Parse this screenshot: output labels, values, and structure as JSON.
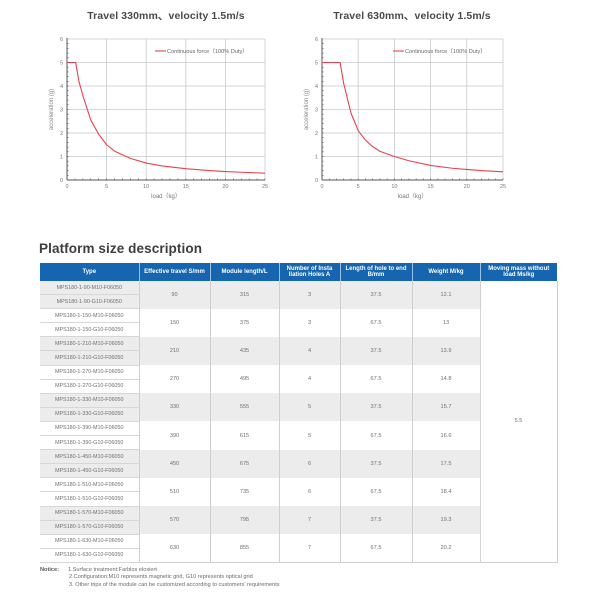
{
  "charts": [
    {
      "title": "Travel 330mm、velocity 1.5m/s",
      "legend": "Continuous force（100% Duty）",
      "xlabel": "load（kg）",
      "ylabel": "acceleration (g)"
    },
    {
      "title": "Travel 630mm、velocity 1.5m/s",
      "legend": "Continuous force（100% Duty）",
      "xlabel": "load（kg）",
      "ylabel": "acceleration (g)"
    }
  ],
  "chart_data": [
    {
      "type": "line",
      "title": "Travel 330mm、velocity 1.5m/s",
      "xlabel": "load（kg）",
      "ylabel": "acceleration (g)",
      "xlim": [
        0,
        25
      ],
      "ylim": [
        0,
        6
      ],
      "xticks": [
        0,
        5,
        10,
        15,
        20,
        25
      ],
      "yticks": [
        0,
        1,
        2,
        3,
        4,
        5,
        6
      ],
      "grid": true,
      "legend_position": "upper right",
      "color": "#e8424f",
      "series": [
        {
          "name": "Continuous force（100% Duty）",
          "x": [
            0,
            1.1,
            1.5,
            2,
            3,
            4,
            5,
            6,
            8,
            10,
            12,
            15,
            18,
            20,
            22,
            25
          ],
          "y": [
            5.0,
            5.0,
            4.2,
            3.6,
            2.55,
            1.95,
            1.5,
            1.23,
            0.92,
            0.72,
            0.6,
            0.48,
            0.4,
            0.36,
            0.33,
            0.29
          ]
        }
      ]
    },
    {
      "type": "line",
      "title": "Travel 630mm、velocity 1.5m/s",
      "xlabel": "load（kg）",
      "ylabel": "acceleration (g)",
      "xlim": [
        0,
        25
      ],
      "ylim": [
        0,
        6
      ],
      "xticks": [
        0,
        5,
        10,
        15,
        20,
        25
      ],
      "yticks": [
        0,
        1,
        2,
        3,
        4,
        5,
        6
      ],
      "grid": true,
      "legend_position": "upper right",
      "color": "#e8424f",
      "series": [
        {
          "name": "Continuous force（100% Duty）",
          "x": [
            0,
            2.5,
            3,
            4,
            5,
            6,
            7,
            8,
            10,
            12,
            15,
            18,
            20,
            22,
            25
          ],
          "y": [
            5.0,
            5.0,
            4.1,
            2.85,
            2.1,
            1.7,
            1.42,
            1.22,
            1.0,
            0.82,
            0.62,
            0.5,
            0.45,
            0.4,
            0.35
          ]
        }
      ]
    }
  ],
  "section": {
    "title": "Platform size description"
  },
  "table": {
    "headers": {
      "type": "Type",
      "travel": "Effective travel S/mm",
      "length": "Module length/L",
      "holes": "Number of Insta llation Holes A",
      "hole_end": "Length of hole to end B/mm",
      "weight": "Weight M/kg",
      "mass": "Moving mass without load Ms/kg"
    },
    "moving_mass": "5.5",
    "groups": [
      {
        "types": [
          "MPS180-1-90-M10-F06050",
          "MPS180-1-90-G10-F06050"
        ],
        "travel": "90",
        "length": "315",
        "holes": "3",
        "hole_end": "37.5",
        "weight": "12.1"
      },
      {
        "types": [
          "MPS180-1-150-M10-F06050",
          "MPS180-1-150-G10-F06050"
        ],
        "travel": "150",
        "length": "375",
        "holes": "3",
        "hole_end": "67.5",
        "weight": "13"
      },
      {
        "types": [
          "MPS180-1-210-M10-F06050",
          "MPS180-1-210-G10-F06050"
        ],
        "travel": "210",
        "length": "435",
        "holes": "4",
        "hole_end": "37.5",
        "weight": "13.9"
      },
      {
        "types": [
          "MPS180-1-270-M10-F06050",
          "MPS180-1-270-G10-F06050"
        ],
        "travel": "270",
        "length": "495",
        "holes": "4",
        "hole_end": "67.5",
        "weight": "14.8"
      },
      {
        "types": [
          "MPS180-1-330-M10-F06050",
          "MPS180-1-330-G10-F06050"
        ],
        "travel": "330",
        "length": "555",
        "holes": "5",
        "hole_end": "37.5",
        "weight": "15.7"
      },
      {
        "types": [
          "MPS180-1-390-M10-F06050",
          "MPS180-1-390-G10-F06050"
        ],
        "travel": "390",
        "length": "615",
        "holes": "5",
        "hole_end": "67.5",
        "weight": "16.6"
      },
      {
        "types": [
          "MPS180-1-450-M10-F06050",
          "MPS180-1-450-G10-F06050"
        ],
        "travel": "450",
        "length": "675",
        "holes": "6",
        "hole_end": "37.5",
        "weight": "17.5"
      },
      {
        "types": [
          "MPS180-1-510-M10-F06050",
          "MPS180-1-510-G10-F06050"
        ],
        "travel": "510",
        "length": "735",
        "holes": "6",
        "hole_end": "67.5",
        "weight": "18.4"
      },
      {
        "types": [
          "MPS180-1-570-M10-F06050",
          "MPS180-1-570-G10-F06050"
        ],
        "travel": "570",
        "length": "795",
        "holes": "7",
        "hole_end": "37.5",
        "weight": "19.3"
      },
      {
        "types": [
          "MPS180-1-630-M10-F06050",
          "MPS180-1-630-G10-F06050"
        ],
        "travel": "630",
        "length": "855",
        "holes": "7",
        "hole_end": "67.5",
        "weight": "20.2"
      }
    ]
  },
  "notice": {
    "label": "Notice:",
    "items": [
      "1.Surface treatment:Farblos eloxiert",
      "2.Configuration:M10 represents magnetic grid, G10 represents optical grid",
      "3. Other trips of the module can be customized according to customers’ requirements"
    ]
  },
  "colors": {
    "header_bg": "#1565b0",
    "curve": "#e8424f",
    "row_shade": "#ececec"
  }
}
